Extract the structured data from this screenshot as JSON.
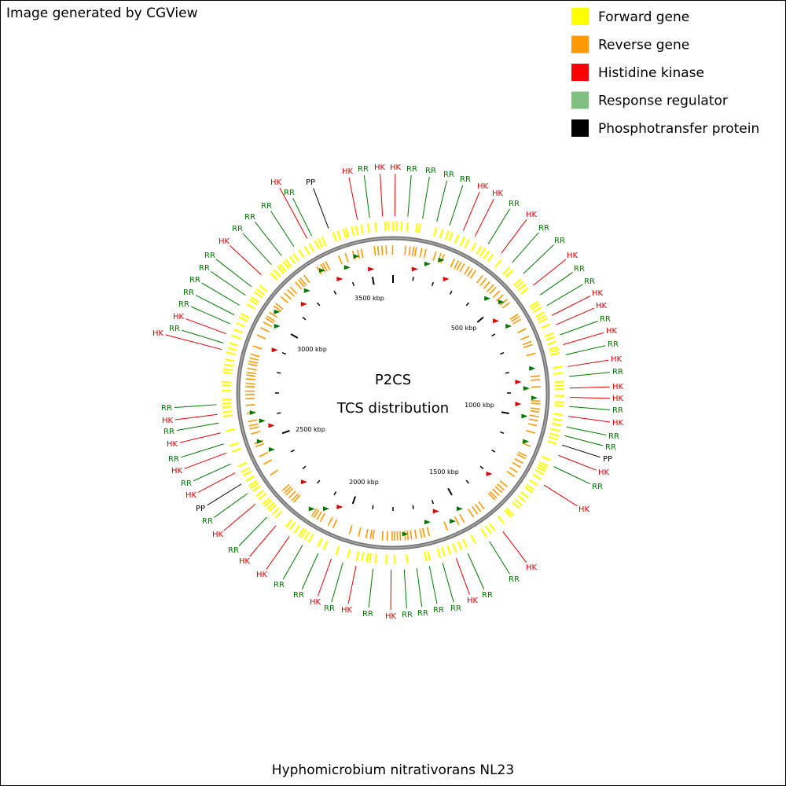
{
  "header": {
    "credit": "Image generated by CGView"
  },
  "legend": [
    {
      "label": "Forward gene",
      "color": "#ffff00"
    },
    {
      "label": "Reverse gene",
      "color": "#ff9900"
    },
    {
      "label": "Histidine kinase",
      "color": "#ff0000"
    },
    {
      "label": "Response regulator",
      "color": "#80c080"
    },
    {
      "label": "Phosphotransfer protein",
      "color": "#000000"
    }
  ],
  "center": {
    "title": "P2CS",
    "subtitle": "TCS distribution"
  },
  "ruler_labels": [
    "500 kbp",
    "1000 kbp",
    "1500 kbp",
    "2000 kbp",
    "2500 kbp",
    "3000 kbp",
    "3500 kbp"
  ],
  "feature_colors": {
    "HK": "#e00000",
    "RR": "#007700",
    "PP": "#000000"
  },
  "features": [
    "PP",
    "HK",
    "RR",
    "HK",
    "HK",
    "RR",
    "RR",
    "RR",
    "RR",
    "HK",
    "HK",
    "RR",
    "HK",
    "RR",
    "RR",
    "HK",
    "RR",
    "RR",
    "HK",
    "HK",
    "RR",
    "HK",
    "RR",
    "HK",
    "RR",
    "HK",
    "HK",
    "RR",
    "HK",
    "RR",
    "RR",
    "PP",
    "HK",
    "RR",
    "HK",
    "HK",
    "RR",
    "RR",
    "HK",
    "RR",
    "RR",
    "RR",
    "RR",
    "HK",
    "RR",
    "HK",
    "RR",
    "HK",
    "RR",
    "RR",
    "HK",
    "HK",
    "RR",
    "HK",
    "RR",
    "PP",
    "HK",
    "RR",
    "HK",
    "RR",
    "HK",
    "RR",
    "HK",
    "RR",
    "HK",
    "RR",
    "HK",
    "RR",
    "RR",
    "RR",
    "RR",
    "RR",
    "HK",
    "RR",
    "RR",
    "RR",
    "HK",
    "RR"
  ],
  "footer": {
    "organism": "Hyphomicrobium nitrativorans NL23"
  }
}
